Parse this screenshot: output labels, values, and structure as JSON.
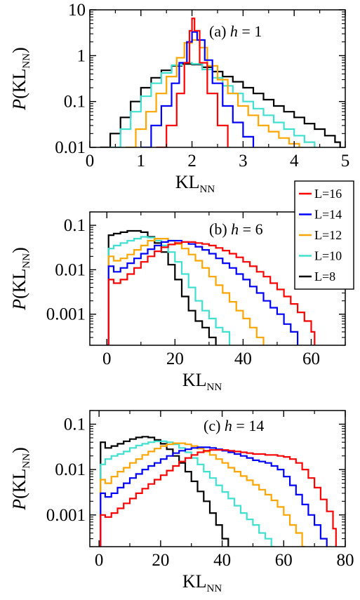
{
  "colors": {
    "L=16": "#ff0000",
    "L=14": "#0000ff",
    "L=12": "#ffa500",
    "L=10": "#40e0d0",
    "L=8": "#000000"
  },
  "legend": [
    "L=16",
    "L=14",
    "L=12",
    "L=10",
    "L=8"
  ],
  "chart_data": [
    {
      "type": "line",
      "annotation_prefix": "(a) ",
      "annotation_var": "h",
      "annotation_suffix": " = 1",
      "xlabel": "KL",
      "xlabel_sub": "NN",
      "ylabel_p": "P",
      "ylabel_rest": "(KL",
      "ylabel_sub": "NN",
      "ylabel_close": ")",
      "xscale": "linear",
      "yscale": "log",
      "xlim": [
        0,
        5
      ],
      "ylim": [
        0.01,
        10
      ],
      "xticks": [
        0,
        1,
        2,
        3,
        4,
        5
      ],
      "xtick_labels": [
        "0",
        "1",
        "2",
        "3",
        "4",
        "5"
      ],
      "yticks": [
        0.01,
        0.1,
        1,
        10
      ],
      "ytick_labels": [
        "0.01",
        "0.1",
        "1",
        "10"
      ],
      "series": [
        {
          "name": "L=8",
          "x": [
            0.2,
            0.4,
            0.6,
            0.8,
            1.0,
            1.2,
            1.4,
            1.6,
            1.8,
            2.0,
            2.2,
            2.4,
            2.6,
            2.8,
            3.0,
            3.2,
            3.4,
            3.6,
            3.8,
            4.0,
            4.2,
            4.4,
            4.6,
            4.8,
            4.9
          ],
          "y": [
            0.01,
            0.02,
            0.045,
            0.1,
            0.2,
            0.33,
            0.48,
            0.6,
            0.66,
            0.64,
            0.56,
            0.45,
            0.35,
            0.27,
            0.2,
            0.15,
            0.11,
            0.08,
            0.06,
            0.045,
            0.033,
            0.025,
            0.018,
            0.013,
            0.01
          ]
        },
        {
          "name": "L=10",
          "x": [
            0.4,
            0.6,
            0.8,
            1.0,
            1.2,
            1.4,
            1.6,
            1.8,
            2.0,
            2.2,
            2.4,
            2.6,
            2.8,
            3.0,
            3.2,
            3.4,
            3.6,
            3.8,
            4.0,
            4.2,
            4.4
          ],
          "y": [
            0.01,
            0.025,
            0.06,
            0.13,
            0.25,
            0.42,
            0.62,
            0.7,
            0.66,
            0.5,
            0.33,
            0.22,
            0.15,
            0.1,
            0.07,
            0.05,
            0.035,
            0.025,
            0.018,
            0.013,
            0.01
          ]
        },
        {
          "name": "L=12",
          "x": [
            0.7,
            0.9,
            1.1,
            1.3,
            1.5,
            1.7,
            1.85,
            2.0,
            2.15,
            2.3,
            2.5,
            2.7,
            2.9,
            3.1,
            3.3,
            3.5,
            3.7,
            3.9,
            4.1
          ],
          "y": [
            0.01,
            0.025,
            0.06,
            0.15,
            0.35,
            0.9,
            1.9,
            2.2,
            1.5,
            0.6,
            0.3,
            0.15,
            0.08,
            0.05,
            0.03,
            0.022,
            0.016,
            0.012,
            0.01
          ]
        },
        {
          "name": "L=14",
          "x": [
            1.0,
            1.2,
            1.4,
            1.6,
            1.75,
            1.9,
            2.0,
            2.1,
            2.25,
            2.4,
            2.6,
            2.8,
            3.0,
            3.2
          ],
          "y": [
            0.01,
            0.03,
            0.08,
            0.25,
            0.7,
            2.0,
            3.3,
            2.2,
            0.8,
            0.25,
            0.08,
            0.035,
            0.017,
            0.01
          ]
        },
        {
          "name": "L=16",
          "x": [
            1.3,
            1.5,
            1.7,
            1.85,
            1.95,
            2.0,
            2.05,
            2.15,
            2.3,
            2.5,
            2.7
          ],
          "y": [
            0.01,
            0.03,
            0.15,
            0.7,
            3.5,
            6.5,
            3.5,
            0.7,
            0.15,
            0.03,
            0.01
          ]
        }
      ]
    },
    {
      "type": "line",
      "annotation_prefix": "(b) ",
      "annotation_var": "h",
      "annotation_suffix": " = 6",
      "xlabel": "KL",
      "xlabel_sub": "NN",
      "ylabel_p": "P",
      "ylabel_rest": "(KL",
      "ylabel_sub": "NN",
      "ylabel_close": ")",
      "xscale": "linear",
      "yscale": "log",
      "xlim": [
        -5,
        70
      ],
      "ylim": [
        0.0002,
        0.2
      ],
      "xticks": [
        0,
        20,
        40,
        60
      ],
      "xtick_labels": [
        "0",
        "20",
        "40",
        "60"
      ],
      "yticks": [
        0.001,
        0.01,
        0.1
      ],
      "ytick_labels": [
        "0.001",
        "0.01",
        "0.1"
      ],
      "series": [
        {
          "name": "L=8",
          "x": [
            0,
            0.5,
            2,
            4,
            6,
            8,
            10,
            12,
            14,
            16,
            18,
            20,
            22,
            24,
            26,
            28,
            30,
            32
          ],
          "y": [
            0.0002,
            0.06,
            0.065,
            0.07,
            0.075,
            0.075,
            0.07,
            0.055,
            0.04,
            0.025,
            0.013,
            0.006,
            0.0025,
            0.0012,
            0.0007,
            0.0005,
            0.0003,
            0.0002
          ]
        },
        {
          "name": "L=10",
          "x": [
            0,
            0.5,
            2,
            4,
            6,
            8,
            10,
            12,
            14,
            16,
            18,
            20,
            22,
            24,
            26,
            28,
            30,
            32,
            34,
            36
          ],
          "y": [
            0.0002,
            0.03,
            0.035,
            0.04,
            0.045,
            0.05,
            0.055,
            0.053,
            0.045,
            0.035,
            0.025,
            0.015,
            0.008,
            0.004,
            0.002,
            0.0012,
            0.0008,
            0.0005,
            0.0004,
            0.0002
          ]
        },
        {
          "name": "L=12",
          "x": [
            0,
            0.5,
            2,
            4,
            6,
            8,
            10,
            12,
            14,
            16,
            18,
            20,
            22,
            24,
            26,
            28,
            30,
            32,
            34,
            36,
            38,
            40,
            42,
            44,
            46
          ],
          "y": [
            0.0002,
            0.02,
            0.016,
            0.018,
            0.022,
            0.028,
            0.035,
            0.045,
            0.05,
            0.05,
            0.045,
            0.038,
            0.03,
            0.022,
            0.016,
            0.011,
            0.007,
            0.0045,
            0.003,
            0.0019,
            0.0012,
            0.0008,
            0.0005,
            0.0003,
            0.0002
          ]
        },
        {
          "name": "L=14",
          "x": [
            0,
            0.5,
            2,
            4,
            6,
            8,
            10,
            12,
            14,
            16,
            18,
            20,
            22,
            24,
            26,
            28,
            30,
            32,
            34,
            36,
            38,
            40,
            42,
            44,
            46,
            48,
            50,
            52,
            54,
            56
          ],
          "y": [
            0.0002,
            0.012,
            0.009,
            0.011,
            0.014,
            0.018,
            0.023,
            0.029,
            0.035,
            0.042,
            0.045,
            0.045,
            0.042,
            0.038,
            0.033,
            0.028,
            0.023,
            0.018,
            0.014,
            0.011,
            0.008,
            0.006,
            0.0042,
            0.003,
            0.002,
            0.0014,
            0.001,
            0.0006,
            0.0004,
            0.0002
          ]
        },
        {
          "name": "L=16",
          "x": [
            0,
            0.5,
            2,
            4,
            6,
            8,
            10,
            12,
            14,
            16,
            18,
            20,
            22,
            24,
            26,
            28,
            30,
            32,
            34,
            36,
            38,
            40,
            42,
            44,
            46,
            48,
            50,
            52,
            54,
            56,
            58,
            60,
            61
          ],
          "y": [
            0.0002,
            0.006,
            0.005,
            0.006,
            0.008,
            0.011,
            0.015,
            0.02,
            0.026,
            0.032,
            0.037,
            0.04,
            0.042,
            0.042,
            0.04,
            0.038,
            0.035,
            0.031,
            0.027,
            0.023,
            0.019,
            0.015,
            0.012,
            0.009,
            0.007,
            0.005,
            0.0036,
            0.0025,
            0.0017,
            0.0011,
            0.0007,
            0.0004,
            0.0002
          ]
        }
      ]
    },
    {
      "type": "line",
      "annotation_prefix": "(c) ",
      "annotation_var": "h",
      "annotation_suffix": " = 14",
      "xlabel": "KL",
      "xlabel_sub": "NN",
      "ylabel_p": "P",
      "ylabel_rest": "(KL",
      "ylabel_sub": "NN",
      "ylabel_close": ")",
      "xscale": "linear",
      "yscale": "log",
      "xlim": [
        -3,
        80
      ],
      "ylim": [
        0.0002,
        0.2
      ],
      "xticks": [
        0,
        20,
        40,
        60,
        80
      ],
      "xtick_labels": [
        "0",
        "20",
        "40",
        "60",
        "80"
      ],
      "yticks": [
        0.001,
        0.01,
        0.1
      ],
      "ytick_labels": [
        "0.001",
        "0.01",
        "0.1"
      ],
      "series": [
        {
          "name": "L=8",
          "x": [
            0,
            0.5,
            2,
            4,
            6,
            8,
            10,
            12,
            14,
            16,
            18,
            20,
            22,
            24,
            26,
            28,
            30,
            32,
            34,
            36,
            38,
            40,
            42
          ],
          "y": [
            0.0002,
            0.04,
            0.03,
            0.033,
            0.037,
            0.042,
            0.047,
            0.051,
            0.053,
            0.051,
            0.045,
            0.037,
            0.028,
            0.02,
            0.014,
            0.009,
            0.0055,
            0.0033,
            0.002,
            0.0011,
            0.0006,
            0.0003,
            0.0002
          ]
        },
        {
          "name": "L=10",
          "x": [
            0,
            0.5,
            2,
            4,
            6,
            8,
            10,
            12,
            14,
            16,
            18,
            20,
            22,
            24,
            26,
            28,
            30,
            32,
            34,
            36,
            38,
            40,
            42,
            44,
            46,
            48,
            50,
            52,
            54,
            56,
            57
          ],
          "y": [
            0.0002,
            0.013,
            0.017,
            0.02,
            0.022,
            0.025,
            0.03,
            0.034,
            0.037,
            0.04,
            0.042,
            0.042,
            0.04,
            0.036,
            0.03,
            0.024,
            0.018,
            0.013,
            0.009,
            0.0065,
            0.0045,
            0.0032,
            0.0023,
            0.0016,
            0.0011,
            0.0008,
            0.0006,
            0.0004,
            0.0003,
            0.0002,
            0.0002
          ]
        },
        {
          "name": "L=12",
          "x": [
            0,
            0.5,
            2,
            4,
            6,
            8,
            10,
            12,
            14,
            16,
            18,
            20,
            22,
            24,
            26,
            28,
            30,
            32,
            34,
            36,
            38,
            40,
            42,
            44,
            46,
            48,
            50,
            52,
            54,
            56,
            58,
            60,
            62,
            64,
            66,
            67
          ],
          "y": [
            0.0002,
            0.006,
            0.005,
            0.007,
            0.009,
            0.011,
            0.014,
            0.017,
            0.021,
            0.025,
            0.029,
            0.033,
            0.036,
            0.038,
            0.038,
            0.036,
            0.033,
            0.029,
            0.025,
            0.021,
            0.017,
            0.014,
            0.011,
            0.009,
            0.0072,
            0.0058,
            0.0046,
            0.0036,
            0.0028,
            0.0021,
            0.0015,
            0.001,
            0.0006,
            0.0004,
            0.0002,
            0.0002
          ]
        },
        {
          "name": "L=14",
          "x": [
            0,
            0.5,
            2,
            4,
            6,
            8,
            10,
            12,
            14,
            16,
            18,
            20,
            22,
            24,
            26,
            28,
            30,
            32,
            34,
            36,
            38,
            40,
            42,
            44,
            46,
            48,
            50,
            52,
            54,
            56,
            58,
            60,
            62,
            64,
            66,
            68,
            70,
            72,
            74
          ],
          "y": [
            0.0002,
            0.003,
            0.0025,
            0.003,
            0.004,
            0.005,
            0.0065,
            0.008,
            0.01,
            0.012,
            0.014,
            0.017,
            0.02,
            0.023,
            0.026,
            0.028,
            0.03,
            0.031,
            0.031,
            0.03,
            0.028,
            0.026,
            0.024,
            0.022,
            0.02,
            0.018,
            0.016,
            0.015,
            0.014,
            0.012,
            0.01,
            0.007,
            0.0045,
            0.0028,
            0.0017,
            0.001,
            0.0006,
            0.0003,
            0.0002
          ]
        },
        {
          "name": "L=16",
          "x": [
            0,
            0.5,
            2,
            4,
            6,
            8,
            10,
            12,
            14,
            16,
            18,
            20,
            22,
            24,
            26,
            28,
            30,
            32,
            34,
            36,
            38,
            40,
            42,
            44,
            46,
            48,
            50,
            52,
            54,
            56,
            58,
            60,
            62,
            64,
            66,
            68,
            70,
            72,
            74,
            76,
            77
          ],
          "y": [
            0.0002,
            0.001,
            0.0009,
            0.0011,
            0.0014,
            0.0018,
            0.0023,
            0.003,
            0.0038,
            0.0048,
            0.006,
            0.0075,
            0.0095,
            0.012,
            0.015,
            0.018,
            0.021,
            0.024,
            0.026,
            0.027,
            0.027,
            0.027,
            0.026,
            0.025,
            0.024,
            0.023,
            0.022,
            0.022,
            0.021,
            0.021,
            0.02,
            0.019,
            0.017,
            0.014,
            0.01,
            0.0065,
            0.004,
            0.0022,
            0.0012,
            0.0005,
            0.0002
          ]
        }
      ]
    }
  ]
}
